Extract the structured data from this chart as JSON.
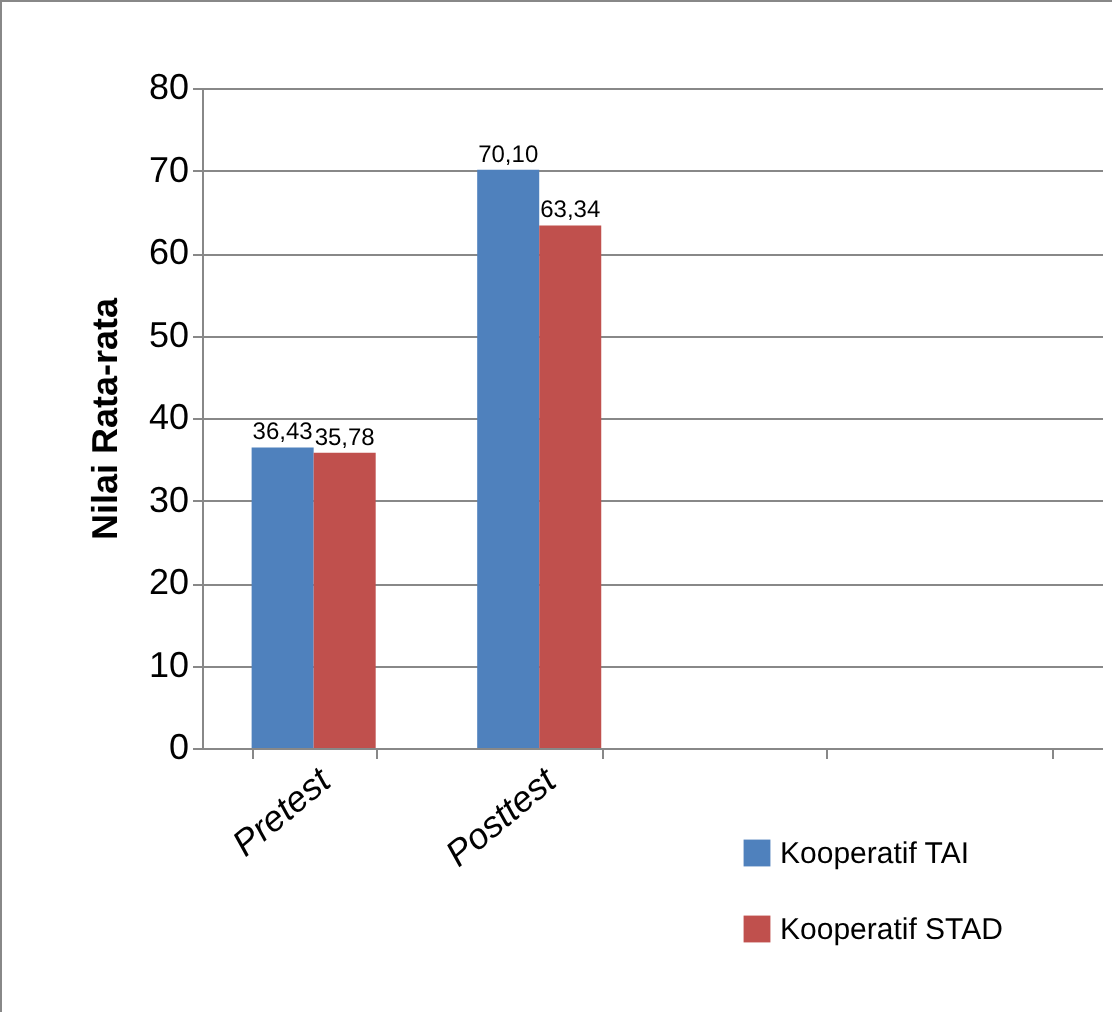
{
  "chart_data": {
    "type": "bar",
    "ylabel": "Nilai Rata-rata",
    "categories": [
      "Pretest",
      "Posttest",
      null,
      null
    ],
    "series": [
      {
        "name": "Kooperatif TAI",
        "color": "#4f81bd",
        "values": [
          36.43,
          70.1,
          null,
          null
        ],
        "value_labels": [
          "36,43",
          "70,10",
          null,
          null
        ]
      },
      {
        "name": "Kooperatif STAD",
        "color": "#c0504d",
        "values": [
          35.78,
          63.34,
          null,
          null
        ],
        "value_labels": [
          "35,78",
          "63,34",
          null,
          null
        ]
      }
    ],
    "ylim": [
      0,
      80
    ],
    "yticks": [
      0,
      10,
      20,
      30,
      40,
      50,
      60,
      70,
      80
    ],
    "grid": "y",
    "legend": "bottom right"
  }
}
